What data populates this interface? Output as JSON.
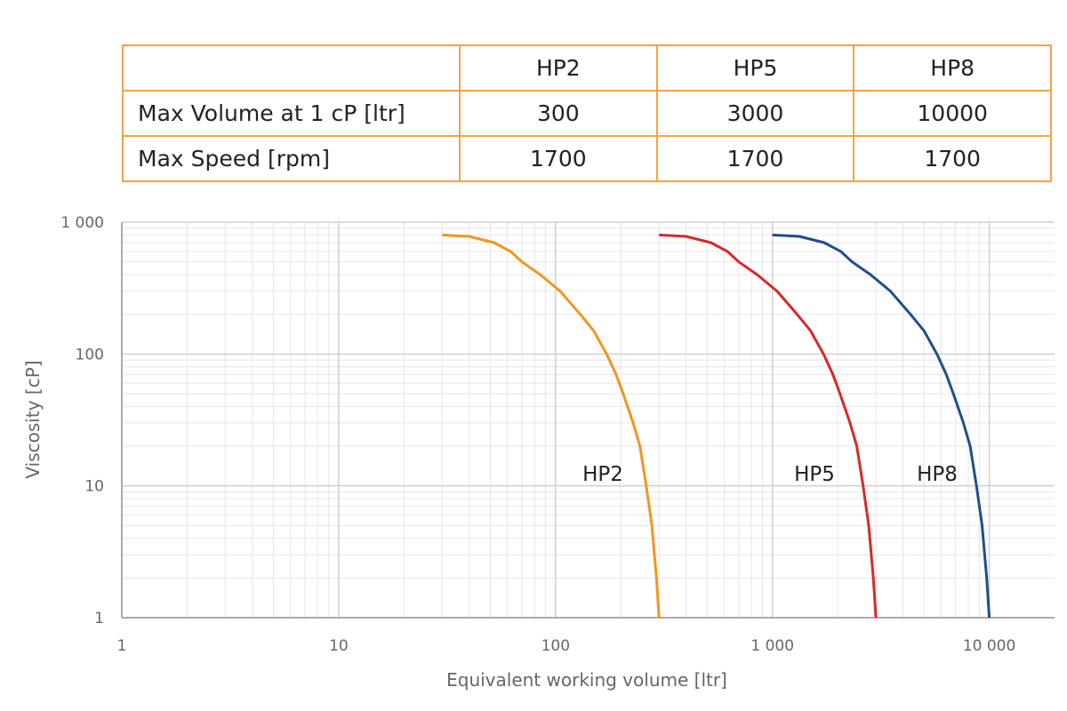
{
  "table": {
    "columns": [
      "HP2",
      "HP5",
      "HP8"
    ],
    "rows": [
      {
        "label": "Max Volume at 1 cP [ltr]",
        "cells": [
          300,
          3000,
          10000
        ]
      },
      {
        "label": "Max Speed [rpm]",
        "cells": [
          1700,
          1700,
          1700
        ]
      }
    ]
  },
  "chart_data": {
    "type": "line",
    "xlabel": "Equivalent working volume [ltr]",
    "ylabel": "Viscosity [cP]",
    "xscale": "log",
    "yscale": "log",
    "grid": true,
    "xlim": [
      1,
      20000
    ],
    "ylim": [
      1,
      1000
    ],
    "xticks": [
      1,
      10,
      100,
      {
        "value": 1000,
        "label": "1 000"
      },
      {
        "value": 10000,
        "label": "10 000"
      }
    ],
    "yticks": [
      1,
      10,
      100,
      {
        "value": 1000,
        "label": "1 000"
      }
    ],
    "series": [
      {
        "name": "HP2",
        "color": "#f0961e",
        "x": [
          30,
          40,
          52,
          62,
          70,
          85,
          105,
          130,
          150,
          172,
          190,
          205,
          228,
          245,
          262,
          278,
          292,
          300
        ],
        "values": [
          800,
          780,
          700,
          600,
          500,
          400,
          300,
          200,
          150,
          100,
          70,
          50,
          30,
          20,
          10,
          5,
          2,
          1
        ]
      },
      {
        "name": "HP5",
        "color": "#d42a2a",
        "x": [
          300,
          400,
          520,
          620,
          700,
          850,
          1050,
          1300,
          1500,
          1720,
          1900,
          2050,
          2280,
          2450,
          2620,
          2780,
          2920,
          3000
        ],
        "values": [
          800,
          780,
          700,
          600,
          500,
          400,
          300,
          200,
          150,
          100,
          70,
          50,
          30,
          20,
          10,
          5,
          2,
          1
        ]
      },
      {
        "name": "HP8",
        "color": "#1f4e8c",
        "x": [
          1000,
          1333,
          1733,
          2067,
          2333,
          2833,
          3500,
          4333,
          5000,
          5733,
          6333,
          6833,
          7600,
          8167,
          8733,
          9267,
          9733,
          10000
        ],
        "values": [
          800,
          780,
          700,
          600,
          500,
          400,
          300,
          200,
          150,
          100,
          70,
          50,
          30,
          20,
          10,
          5,
          2,
          1
        ]
      }
    ]
  }
}
